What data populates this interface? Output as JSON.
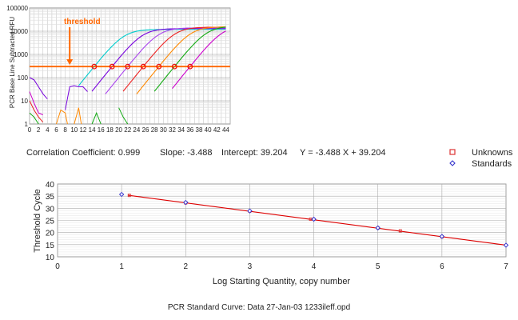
{
  "chart_data": [
    {
      "type": "line",
      "title": "",
      "xlabel": "",
      "ylabel": "PCR Base Line Subtracted RFU",
      "y_scale": "log",
      "xlim": [
        0,
        45
      ],
      "ylim": [
        1,
        100000
      ],
      "x_ticks": [
        0,
        2,
        4,
        6,
        8,
        10,
        12,
        14,
        16,
        18,
        20,
        22,
        24,
        26,
        28,
        30,
        32,
        34,
        36,
        38,
        40,
        42,
        44
      ],
      "y_ticks": [
        1,
        10,
        100,
        1000,
        10000,
        100000
      ],
      "y_tick_labels": [
        "1",
        "10",
        "100",
        "1000",
        "10000",
        "100000"
      ],
      "grid": true,
      "annotation": "threshold",
      "threshold": 300,
      "threshold_color": "#ff6600",
      "threshold_arrow_x": 9,
      "curves": [
        {
          "color": "#00cccc",
          "ct": 14.5,
          "plateau": 12000,
          "start": 11
        },
        {
          "color": "#7700dd",
          "ct": 18.5,
          "plateau": 13000,
          "start": 14
        },
        {
          "color": "#aa44ee",
          "ct": 22,
          "plateau": 14000,
          "start": 17
        },
        {
          "color": "#ee2222",
          "ct": 25.5,
          "plateau": 15000,
          "start": 21
        },
        {
          "color": "#ff8800",
          "ct": 29,
          "plateau": 15500,
          "start": 24
        },
        {
          "color": "#11aa11",
          "ct": 32.5,
          "plateau": 16500,
          "start": 28
        },
        {
          "color": "#cc00cc",
          "ct": 36,
          "plateau": 17000,
          "start": 32
        }
      ],
      "noise": [
        {
          "color": "#7700dd",
          "points": [
            [
              0,
              100
            ],
            [
              1,
              80
            ],
            [
              2,
              40
            ],
            [
              3,
              20
            ],
            [
              4,
              12
            ]
          ]
        },
        {
          "color": "#7700dd",
          "points": [
            [
              8,
              4
            ],
            [
              9,
              40
            ],
            [
              10,
              45
            ],
            [
              11,
              40
            ],
            [
              12,
              40
            ],
            [
              13,
              25
            ]
          ]
        },
        {
          "color": "#cc00cc",
          "points": [
            [
              0,
              25
            ],
            [
              1,
              8
            ],
            [
              2,
              3
            ],
            [
              3,
              2.5
            ]
          ]
        },
        {
          "color": "#ee2222",
          "points": [
            [
              0,
              10
            ],
            [
              1,
              4
            ],
            [
              2,
              2
            ],
            [
              3,
              1.2
            ]
          ]
        },
        {
          "color": "#ff8800",
          "points": [
            [
              6,
              1
            ],
            [
              7,
              4
            ],
            [
              8,
              3
            ],
            [
              8.5,
              1
            ]
          ]
        },
        {
          "color": "#ff8800",
          "points": [
            [
              10,
              1
            ],
            [
              11,
              5
            ],
            [
              11.6,
              1
            ]
          ]
        },
        {
          "color": "#11aa11",
          "points": [
            [
              0,
              3
            ],
            [
              1,
              2
            ],
            [
              2,
              1
            ]
          ]
        },
        {
          "color": "#11aa11",
          "points": [
            [
              20,
              5
            ],
            [
              21,
              2
            ],
            [
              22,
              1
            ]
          ]
        },
        {
          "color": "#11aa11",
          "points": [
            [
              14,
              1
            ],
            [
              15,
              3
            ],
            [
              16,
              1
            ]
          ]
        }
      ],
      "threshold_crossings": [
        14.5,
        18.5,
        22,
        25.5,
        29,
        32.5,
        36
      ]
    },
    {
      "type": "scatter",
      "title": "",
      "xlabel": "Log Starting Quantity, copy number",
      "ylabel": "Threshold Cycle",
      "xlim": [
        0,
        7
      ],
      "ylim": [
        10,
        40
      ],
      "x_ticks": [
        0,
        1,
        2,
        3,
        4,
        5,
        6,
        7
      ],
      "y_ticks": [
        10,
        15,
        20,
        25,
        30,
        35,
        40
      ],
      "grid": true,
      "legend_position": "top-right",
      "fit": {
        "slope": -3.488,
        "intercept": 39.204,
        "x_range": [
          1.1,
          7
        ],
        "color": "#dd0000"
      },
      "series": [
        {
          "name": "Unknowns",
          "marker": "square",
          "color": "#dd3333",
          "points": [
            [
              1.12,
              35.3
            ],
            [
              2.0,
              32.2
            ],
            [
              3.0,
              28.8
            ],
            [
              3.95,
              25.5
            ],
            [
              5.0,
              21.9
            ],
            [
              5.35,
              20.7
            ],
            [
              6.0,
              18.2
            ]
          ]
        },
        {
          "name": "Standards",
          "marker": "diamond",
          "color": "#3333cc",
          "points": [
            [
              1.0,
              35.7
            ],
            [
              2.0,
              32.4
            ],
            [
              3.0,
              28.9
            ],
            [
              4.0,
              25.5
            ],
            [
              5.0,
              21.9
            ],
            [
              6.0,
              18.4
            ],
            [
              7.0,
              14.8
            ]
          ]
        }
      ]
    }
  ],
  "stats": {
    "correlation": "Correlation Coefficient: 0.999",
    "slope": "Slope: -3.488",
    "intercept": "Intercept: 39.204",
    "equation": "Y = -3.488 X + 39.204"
  },
  "caption": "PCR Standard Curve: Data 27-Jan-03 1233ileff.opd"
}
